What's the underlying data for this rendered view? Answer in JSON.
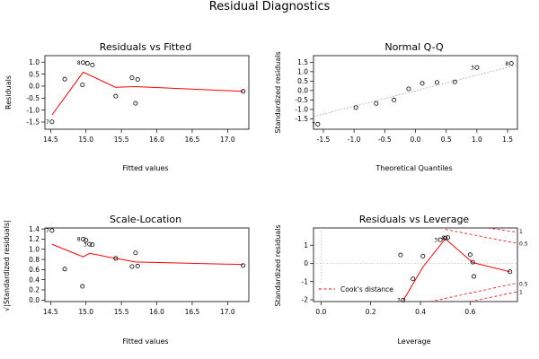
{
  "figure": {
    "title": "Residual Diagnostics"
  },
  "chart_data": [
    {
      "type": "scatter",
      "title": "Residuals vs Fitted",
      "xlabel": "Fitted values",
      "ylabel": "Residuals",
      "xlim": [
        14.42,
        17.3
      ],
      "ylim": [
        -1.8,
        1.27
      ],
      "xticks": [
        "14.5",
        "15.0",
        "15.5",
        "16.0",
        "16.5",
        "17.0"
      ],
      "yticks": [
        "-1.5",
        "-1.0",
        "-0.5",
        "0.0",
        "0.5",
        "1.0"
      ],
      "points": [
        {
          "x": 14.52,
          "y": -1.49,
          "label": "7"
        },
        {
          "x": 14.7,
          "y": 0.29
        },
        {
          "x": 14.95,
          "y": 0.05
        },
        {
          "x": 14.96,
          "y": 0.98,
          "label": "8"
        },
        {
          "x": 15.02,
          "y": 0.95
        },
        {
          "x": 15.09,
          "y": 0.88
        },
        {
          "x": 15.42,
          "y": -0.42
        },
        {
          "x": 15.65,
          "y": 0.35
        },
        {
          "x": 15.7,
          "y": -0.72
        },
        {
          "x": 15.73,
          "y": 0.28
        },
        {
          "x": 17.22,
          "y": -0.22
        }
      ],
      "smooth": {
        "x": [
          14.52,
          14.96,
          15.42,
          15.7,
          17.22
        ],
        "y": [
          -1.2,
          0.58,
          -0.05,
          -0.02,
          -0.22
        ]
      },
      "smooth_color": "#ff0000"
    },
    {
      "type": "scatter",
      "title": "Normal Q-Q",
      "xlabel": "Theoretical Quantiles",
      "ylabel": "Standardized residuals",
      "xlim": [
        -1.66,
        1.66
      ],
      "ylim": [
        -2.05,
        1.85
      ],
      "xticks": [
        "-1.5",
        "-1.0",
        "-0.5",
        "0.0",
        "0.5",
        "1.0",
        "1.5"
      ],
      "yticks": [
        "-1.5",
        "-1.0",
        "-0.5",
        "0.0",
        "0.5",
        "1.0",
        "1.5"
      ],
      "points": [
        {
          "x": -1.59,
          "y": -1.78,
          "label": "7"
        },
        {
          "x": -0.97,
          "y": -0.9
        },
        {
          "x": -0.64,
          "y": -0.68
        },
        {
          "x": -0.35,
          "y": -0.5
        },
        {
          "x": -0.11,
          "y": 0.09
        },
        {
          "x": 0.11,
          "y": 0.38
        },
        {
          "x": 0.35,
          "y": 0.43
        },
        {
          "x": 0.64,
          "y": 0.46
        },
        {
          "x": 1.0,
          "y": 1.22,
          "label": "3"
        },
        {
          "x": 1.56,
          "y": 1.44,
          "label": "8"
        }
      ],
      "reference_line": {
        "x": [
          -1.66,
          1.66
        ],
        "y": [
          -1.38,
          1.36
        ]
      }
    },
    {
      "type": "scatter",
      "title": "Scale-Location",
      "xlabel": "Fitted values",
      "ylabel": "√|Standardized residuals|",
      "xlim": [
        14.42,
        17.3
      ],
      "ylim": [
        -0.03,
        1.42
      ],
      "xticks": [
        "14.5",
        "15.0",
        "15.5",
        "16.0",
        "16.5",
        "17.0"
      ],
      "yticks": [
        "0.0",
        "0.2",
        "0.4",
        "0.6",
        "0.8",
        "1.0",
        "1.2",
        "1.4"
      ],
      "points": [
        {
          "x": 14.52,
          "y": 1.37,
          "label": "7"
        },
        {
          "x": 14.7,
          "y": 0.61
        },
        {
          "x": 14.95,
          "y": 0.27
        },
        {
          "x": 14.96,
          "y": 1.2,
          "label": "8"
        },
        {
          "x": 15.0,
          "y": 1.18
        },
        {
          "x": 15.05,
          "y": 1.1,
          "label": "3"
        },
        {
          "x": 15.09,
          "y": 1.09
        },
        {
          "x": 15.42,
          "y": 0.82
        },
        {
          "x": 15.65,
          "y": 0.66
        },
        {
          "x": 15.7,
          "y": 0.93
        },
        {
          "x": 15.73,
          "y": 0.67
        },
        {
          "x": 17.22,
          "y": 0.68
        }
      ],
      "smooth": {
        "x": [
          14.52,
          14.96,
          15.05,
          15.42,
          15.7,
          17.22
        ],
        "y": [
          1.1,
          0.85,
          0.92,
          0.82,
          0.75,
          0.7
        ]
      },
      "smooth_color": "#ff0000"
    },
    {
      "type": "scatter",
      "title": "Residuals vs Leverage",
      "xlabel": "Leverage",
      "ylabel": "Standardized residuals",
      "xlim": [
        -0.03,
        0.79
      ],
      "ylim": [
        -2.1,
        1.95
      ],
      "xticks": [
        "0.0",
        "0.2",
        "0.4",
        "0.6"
      ],
      "yticks": [
        "-2",
        "-1",
        "0",
        "1"
      ],
      "points": [
        {
          "x": 0.32,
          "y": 0.46
        },
        {
          "x": 0.33,
          "y": -2.02,
          "label": "7"
        },
        {
          "x": 0.37,
          "y": -0.85
        },
        {
          "x": 0.41,
          "y": 0.4
        },
        {
          "x": 0.48,
          "y": 1.3,
          "label": "3"
        },
        {
          "x": 0.5,
          "y": 1.4
        },
        {
          "x": 0.51,
          "y": 1.42,
          "label": "8"
        },
        {
          "x": 0.6,
          "y": 0.48
        },
        {
          "x": 0.61,
          "y": 0.07
        },
        {
          "x": 0.615,
          "y": -0.72
        },
        {
          "x": 0.76,
          "y": -0.46
        }
      ],
      "smooth": {
        "x": [
          0.33,
          0.41,
          0.5,
          0.61,
          0.76
        ],
        "y": [
          -2.05,
          -0.2,
          1.35,
          0.05,
          -0.46
        ]
      },
      "smooth_color": "#ff0000",
      "cooks_distance": {
        "levels": [
          "0.5",
          "1"
        ],
        "color": "#ff0000",
        "right_labels": [
          {
            "text": "1",
            "y": 1.78
          },
          {
            "text": "0.5",
            "y": 1.1
          },
          {
            "text": "0.5",
            "y": -1.1
          },
          {
            "text": "1",
            "y": -1.55
          }
        ],
        "upper_05": {
          "x": [
            0.5,
            0.79
          ],
          "y": [
            1.87,
            1.1
          ]
        },
        "upper_1": {
          "x": [
            0.67,
            0.79
          ],
          "y": [
            1.95,
            1.72
          ]
        },
        "lower_05": {
          "x": [
            0.44,
            0.79
          ],
          "y": [
            -2.1,
            -1.08
          ]
        },
        "lower_1": {
          "x": [
            0.6,
            0.79
          ],
          "y": [
            -2.1,
            -1.56
          ]
        }
      },
      "legend": {
        "label": "Cook's distance",
        "placement": "bottom-left"
      }
    }
  ]
}
